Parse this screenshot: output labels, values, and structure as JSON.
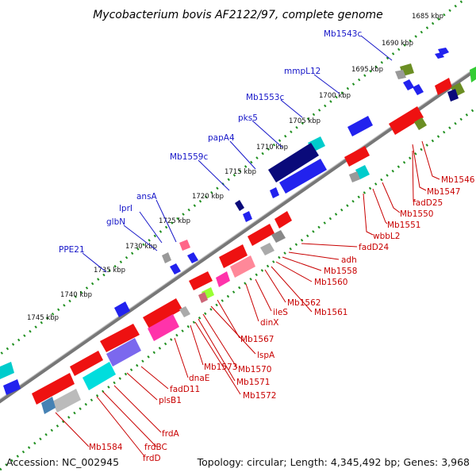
{
  "title": "Mycobacterium bovis AF2122/97, complete genome",
  "footer": {
    "accession": "Accession: NC_002945",
    "summary": "Topology: circular; Length: 4,345,492 bp; Genes: 3,968"
  },
  "kbp_ticks": [
    "1685 kbp",
    "1690 kbp",
    "1695 kbp",
    "1700 kbp",
    "1705 kbp",
    "1710 kbp",
    "1715 kbp",
    "1720 kbp",
    "1725 kbp",
    "1730 kbp",
    "1735 kbp",
    "1740 kbp",
    "1745 kbp"
  ],
  "forward_gene_labels": [
    "Mb1543c",
    "mmpL12",
    "Mb1553c",
    "pks5",
    "papA4",
    "Mb1559c",
    "ansA",
    "lprI",
    "glbN",
    "PPE21"
  ],
  "reverse_gene_labels": [
    "Mb1546",
    "Mb1547",
    "fadD25",
    "Mb1550",
    "Mb1551",
    "wbbL2",
    "fadD24",
    "adh",
    "Mb1558",
    "Mb1560",
    "Mb1562",
    "Mb1561",
    "ileS",
    "dinX",
    "Mb1567",
    "lspA",
    "Mb1570",
    "Mb1571",
    "Mb1572",
    "Mb1573",
    "dnaE",
    "fadD11",
    "plsB1",
    "frdA",
    "frdBC",
    "frdD",
    "Mb1584"
  ],
  "colors": {
    "forward_blue": "#1a1aee",
    "navy": "#0a0a7a",
    "reverse_red": "#ee1111",
    "backbone": "#777777",
    "tick_dots": "#1f8f1f",
    "label_blue": "#1515c8",
    "label_red": "#c80000"
  }
}
